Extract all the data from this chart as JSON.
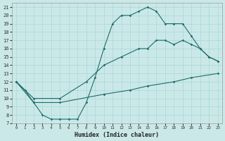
{
  "xlabel": "Humidex (Indice chaleur)",
  "bg_color": "#cbe8e8",
  "grid_color": "#a8d8d8",
  "line_color": "#1f6b6b",
  "xlim": [
    -0.5,
    23.5
  ],
  "ylim": [
    7,
    21.5
  ],
  "xticks": [
    0,
    1,
    2,
    3,
    4,
    5,
    6,
    7,
    8,
    9,
    10,
    11,
    12,
    13,
    14,
    15,
    16,
    17,
    18,
    19,
    20,
    21,
    22,
    23
  ],
  "yticks": [
    7,
    8,
    9,
    10,
    11,
    12,
    13,
    14,
    15,
    16,
    17,
    18,
    19,
    20,
    21
  ],
  "line1_x": [
    0,
    1,
    2,
    3,
    4,
    5,
    6,
    7,
    8,
    9,
    10,
    11,
    12,
    13,
    14,
    15,
    16,
    17,
    18,
    19,
    20,
    21,
    22,
    23
  ],
  "line1_y": [
    12,
    11,
    9.5,
    8,
    7.5,
    7.5,
    7.5,
    7.5,
    9.5,
    12.5,
    16,
    19,
    20,
    20,
    20.5,
    21,
    20.5,
    19,
    19,
    19,
    17.5,
    16,
    15,
    14.5
  ],
  "line2_x": [
    0,
    2,
    5,
    8,
    10,
    12,
    14,
    15,
    16,
    17,
    18,
    19,
    20,
    21,
    22,
    23
  ],
  "line2_y": [
    12,
    10,
    10,
    12,
    14,
    15,
    16,
    16,
    17,
    17,
    16.5,
    17,
    16.5,
    16,
    15,
    14.5
  ],
  "line3_x": [
    0,
    2,
    5,
    10,
    13,
    15,
    18,
    20,
    23
  ],
  "line3_y": [
    12,
    9.5,
    9.5,
    10.5,
    11,
    11.5,
    12,
    12.5,
    13
  ]
}
